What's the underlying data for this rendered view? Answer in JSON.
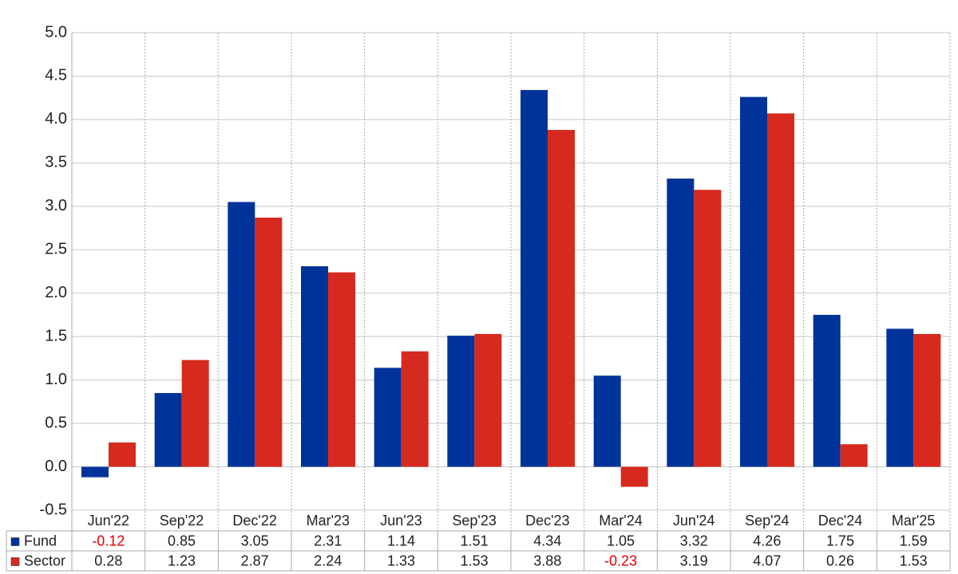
{
  "chart_data": {
    "type": "bar",
    "categories": [
      "Jun'22",
      "Sep'22",
      "Dec'22",
      "Mar'23",
      "Jun'23",
      "Sep'23",
      "Dec'23",
      "Mar'24",
      "Jun'24",
      "Sep'24",
      "Dec'24",
      "Mar'25"
    ],
    "series": [
      {
        "name": "Fund",
        "color": "#003399",
        "values": [
          -0.12,
          0.85,
          3.05,
          2.31,
          1.14,
          1.51,
          4.34,
          1.05,
          3.32,
          4.26,
          1.75,
          1.59
        ]
      },
      {
        "name": "Sector",
        "color": "#d62a1e",
        "values": [
          0.28,
          1.23,
          2.87,
          2.24,
          1.33,
          1.53,
          3.88,
          -0.23,
          3.19,
          4.07,
          0.26,
          1.53
        ]
      }
    ],
    "ylim": [
      -0.5,
      5
    ],
    "yticks": [
      {
        "value": 5,
        "label": "5.0"
      },
      4.5,
      {
        "value": 4,
        "label": "4.0"
      },
      3.5,
      {
        "value": 3,
        "label": "3.0"
      },
      2.5,
      {
        "value": 2,
        "label": "2.0"
      },
      1.5,
      {
        "value": 1,
        "label": "1.0"
      },
      0.5,
      {
        "value": 0,
        "label": "0.0"
      },
      -0.5
    ],
    "grid": true
  }
}
